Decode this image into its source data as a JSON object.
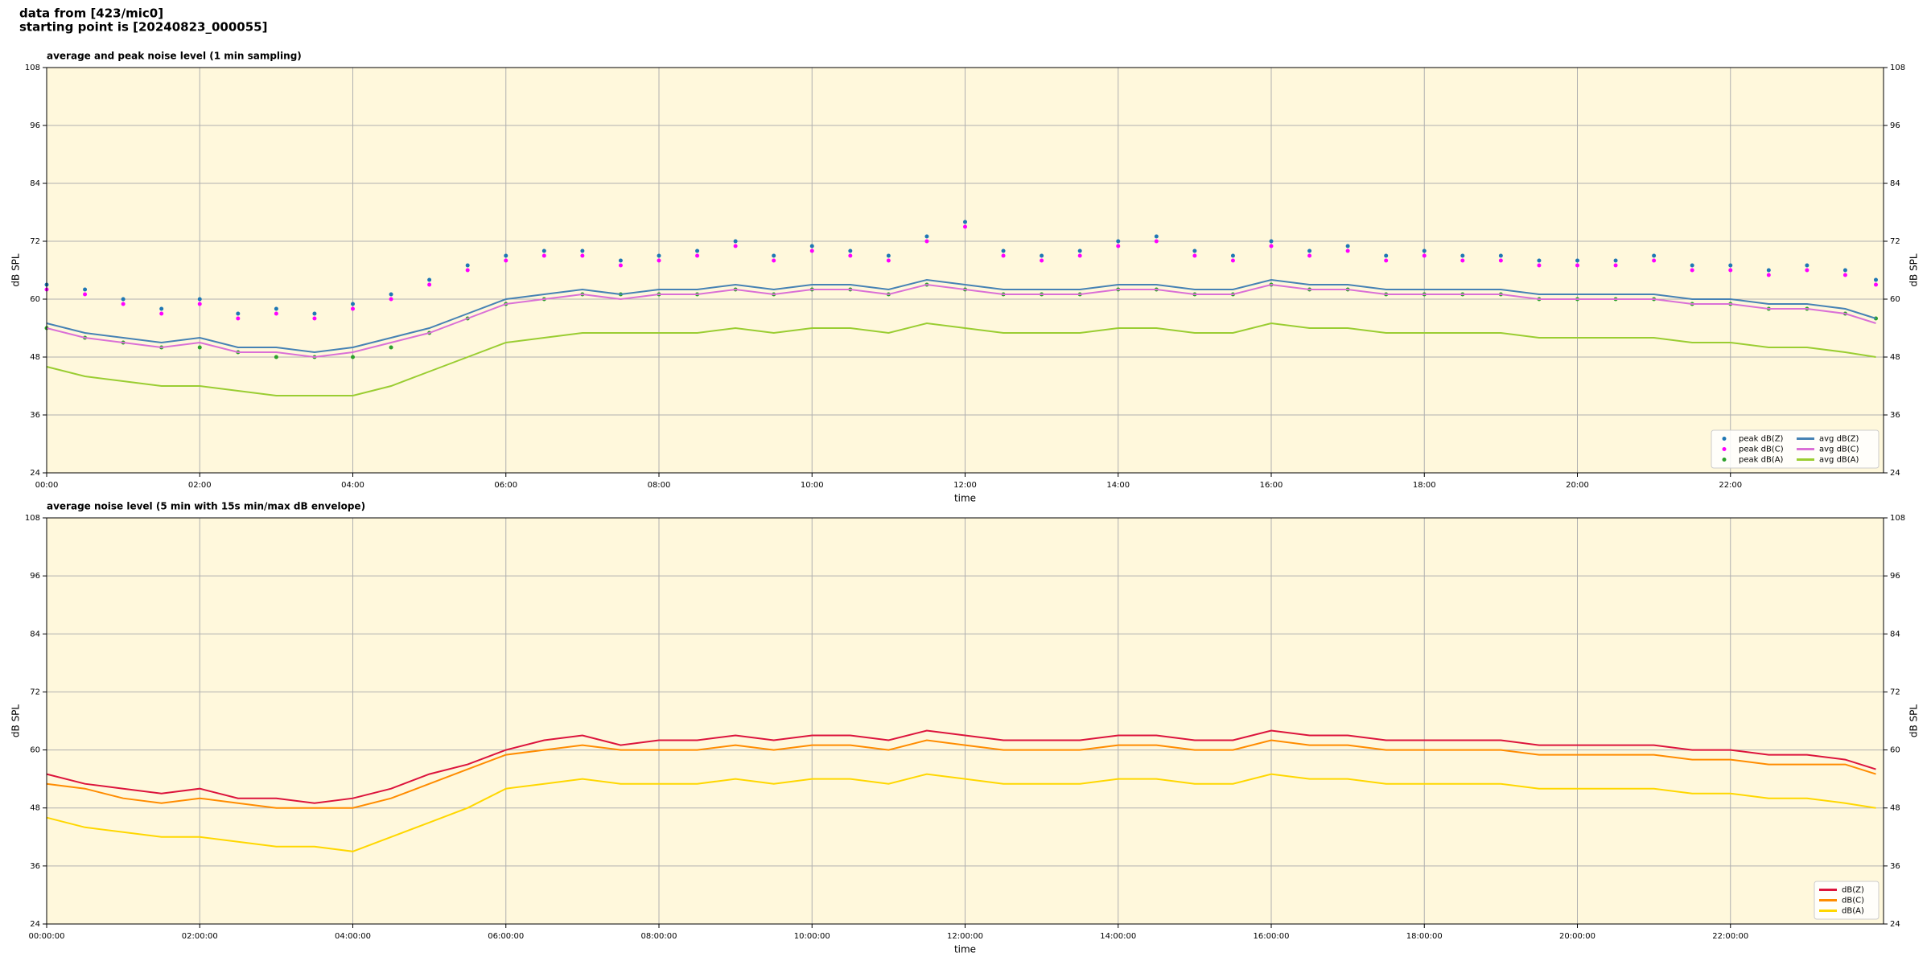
{
  "suptitle": [
    "data from [423/mic0]",
    "starting point is [20240823_000055]"
  ],
  "chart_data": [
    {
      "type": "line",
      "title": "average and peak noise level (1 min sampling)",
      "xlabel": "time",
      "ylabel": "dB SPL",
      "xlim": [
        0,
        24
      ],
      "ylim": [
        24,
        108
      ],
      "yticks": [
        24,
        36,
        48,
        60,
        72,
        84,
        96,
        108
      ],
      "xticks": [
        {
          "value": 0,
          "label": "00:00"
        },
        {
          "value": 2,
          "label": "02:00"
        },
        {
          "value": 4,
          "label": "04:00"
        },
        {
          "value": 6,
          "label": "06:00"
        },
        {
          "value": 8,
          "label": "08:00"
        },
        {
          "value": 10,
          "label": "10:00"
        },
        {
          "value": 12,
          "label": "12:00"
        },
        {
          "value": 14,
          "label": "14:00"
        },
        {
          "value": 16,
          "label": "16:00"
        },
        {
          "value": 18,
          "label": "18:00"
        },
        {
          "value": 20,
          "label": "20:00"
        },
        {
          "value": 22,
          "label": "22:00"
        }
      ],
      "grid": true,
      "legend": "lower right",
      "legend_columns": 2,
      "x": [
        0,
        0.5,
        1,
        1.5,
        2,
        2.5,
        3,
        3.5,
        4,
        4.5,
        5,
        5.5,
        6,
        6.5,
        7,
        7.5,
        8,
        8.5,
        9,
        9.5,
        10,
        10.5,
        11,
        11.5,
        12,
        12.5,
        13,
        13.5,
        14,
        14.5,
        15,
        15.5,
        16,
        16.5,
        17,
        17.5,
        18,
        18.5,
        19,
        19.5,
        20,
        20.5,
        21,
        21.5,
        22,
        22.5,
        23,
        23.5,
        23.9
      ],
      "series": [
        {
          "name": "peak dB(Z)",
          "kind": "scatter",
          "color": "#1f77b4",
          "values": [
            63,
            62,
            60,
            58,
            60,
            57,
            58,
            57,
            59,
            61,
            64,
            67,
            69,
            70,
            70,
            68,
            69,
            70,
            72,
            69,
            71,
            70,
            69,
            73,
            76,
            70,
            69,
            70,
            72,
            73,
            70,
            69,
            72,
            70,
            71,
            69,
            70,
            69,
            69,
            68,
            68,
            68,
            69,
            67,
            67,
            66,
            67,
            66,
            64
          ]
        },
        {
          "name": "peak dB(C)",
          "kind": "scatter",
          "color": "#ff00ff",
          "values": [
            62,
            61,
            59,
            57,
            59,
            56,
            57,
            56,
            58,
            60,
            63,
            66,
            68,
            69,
            69,
            67,
            68,
            69,
            71,
            68,
            70,
            69,
            68,
            72,
            75,
            69,
            68,
            69,
            71,
            72,
            69,
            68,
            71,
            69,
            70,
            68,
            69,
            68,
            68,
            67,
            67,
            67,
            68,
            66,
            66,
            65,
            66,
            65,
            63
          ]
        },
        {
          "name": "peak dB(A)",
          "kind": "scatter",
          "color": "#2ca02c",
          "values": [
            54,
            52,
            51,
            50,
            50,
            49,
            48,
            48,
            48,
            50,
            53,
            56,
            59,
            60,
            61,
            61,
            61,
            61,
            62,
            61,
            62,
            62,
            61,
            63,
            62,
            61,
            61,
            61,
            62,
            62,
            61,
            61,
            63,
            62,
            62,
            61,
            61,
            61,
            61,
            60,
            60,
            60,
            60,
            59,
            59,
            58,
            58,
            57,
            56
          ]
        },
        {
          "name": "avg dB(Z)",
          "kind": "line",
          "color": "#4682b4",
          "values": [
            55,
            53,
            52,
            51,
            52,
            50,
            50,
            49,
            50,
            52,
            54,
            57,
            60,
            61,
            62,
            61,
            62,
            62,
            63,
            62,
            63,
            63,
            62,
            64,
            63,
            62,
            62,
            62,
            63,
            63,
            62,
            62,
            64,
            63,
            63,
            62,
            62,
            62,
            62,
            61,
            61,
            61,
            61,
            60,
            60,
            59,
            59,
            58,
            56
          ]
        },
        {
          "name": "avg dB(C)",
          "kind": "line",
          "color": "#da70d6",
          "values": [
            54,
            52,
            51,
            50,
            51,
            49,
            49,
            48,
            49,
            51,
            53,
            56,
            59,
            60,
            61,
            60,
            61,
            61,
            62,
            61,
            62,
            62,
            61,
            63,
            62,
            61,
            61,
            61,
            62,
            62,
            61,
            61,
            63,
            62,
            62,
            61,
            61,
            61,
            61,
            60,
            60,
            60,
            60,
            59,
            59,
            58,
            58,
            57,
            55
          ]
        },
        {
          "name": "avg dB(A)",
          "kind": "line",
          "color": "#9acd32",
          "values": [
            46,
            44,
            43,
            42,
            42,
            41,
            40,
            40,
            40,
            42,
            45,
            48,
            51,
            52,
            53,
            53,
            53,
            53,
            54,
            53,
            54,
            54,
            53,
            55,
            54,
            53,
            53,
            53,
            54,
            54,
            53,
            53,
            55,
            54,
            54,
            53,
            53,
            53,
            53,
            52,
            52,
            52,
            52,
            51,
            51,
            50,
            50,
            49,
            48
          ]
        }
      ]
    },
    {
      "type": "line",
      "title": "average noise level (5 min with 15s min/max dB envelope)",
      "xlabel": "time",
      "ylabel": "dB SPL",
      "xlim": [
        0,
        24
      ],
      "ylim": [
        24,
        108
      ],
      "yticks": [
        24,
        36,
        48,
        60,
        72,
        84,
        96,
        108
      ],
      "xticks": [
        {
          "value": 0,
          "label": "00:00:00"
        },
        {
          "value": 2,
          "label": "02:00:00"
        },
        {
          "value": 4,
          "label": "04:00:00"
        },
        {
          "value": 6,
          "label": "06:00:00"
        },
        {
          "value": 8,
          "label": "08:00:00"
        },
        {
          "value": 10,
          "label": "10:00:00"
        },
        {
          "value": 12,
          "label": "12:00:00"
        },
        {
          "value": 14,
          "label": "14:00:00"
        },
        {
          "value": 16,
          "label": "16:00:00"
        },
        {
          "value": 18,
          "label": "18:00:00"
        },
        {
          "value": 20,
          "label": "20:00:00"
        },
        {
          "value": 22,
          "label": "22:00:00"
        }
      ],
      "grid": true,
      "legend": "lower right",
      "legend_columns": 1,
      "x": [
        0,
        0.5,
        1,
        1.5,
        2,
        2.5,
        3,
        3.5,
        4,
        4.5,
        5,
        5.5,
        6,
        6.5,
        7,
        7.5,
        8,
        8.5,
        9,
        9.5,
        10,
        10.5,
        11,
        11.5,
        12,
        12.5,
        13,
        13.5,
        14,
        14.5,
        15,
        15.5,
        16,
        16.5,
        17,
        17.5,
        18,
        18.5,
        19,
        19.5,
        20,
        20.5,
        21,
        21.5,
        22,
        22.5,
        23,
        23.5,
        23.9
      ],
      "series": [
        {
          "name": "dB(Z)",
          "kind": "line",
          "color": "#dc143c",
          "values": [
            55,
            53,
            52,
            51,
            52,
            50,
            50,
            49,
            50,
            52,
            55,
            57,
            60,
            62,
            63,
            61,
            62,
            62,
            63,
            62,
            63,
            63,
            62,
            64,
            63,
            62,
            62,
            62,
            63,
            63,
            62,
            62,
            64,
            63,
            63,
            62,
            62,
            62,
            62,
            61,
            61,
            61,
            61,
            60,
            60,
            59,
            59,
            58,
            56
          ]
        },
        {
          "name": "dB(C)",
          "kind": "line",
          "color": "#ff8c00",
          "values": [
            53,
            52,
            50,
            49,
            50,
            49,
            48,
            48,
            48,
            50,
            53,
            56,
            59,
            60,
            61,
            60,
            60,
            60,
            61,
            60,
            61,
            61,
            60,
            62,
            61,
            60,
            60,
            60,
            61,
            61,
            60,
            60,
            62,
            61,
            61,
            60,
            60,
            60,
            60,
            59,
            59,
            59,
            59,
            58,
            58,
            57,
            57,
            57,
            55
          ]
        },
        {
          "name": "dB(A)",
          "kind": "line",
          "color": "#ffd700",
          "values": [
            46,
            44,
            43,
            42,
            42,
            41,
            40,
            40,
            39,
            42,
            45,
            48,
            52,
            53,
            54,
            53,
            53,
            53,
            54,
            53,
            54,
            54,
            53,
            55,
            54,
            53,
            53,
            53,
            54,
            54,
            53,
            53,
            55,
            54,
            54,
            53,
            53,
            53,
            53,
            52,
            52,
            52,
            52,
            51,
            51,
            50,
            50,
            49,
            48
          ]
        }
      ]
    }
  ]
}
